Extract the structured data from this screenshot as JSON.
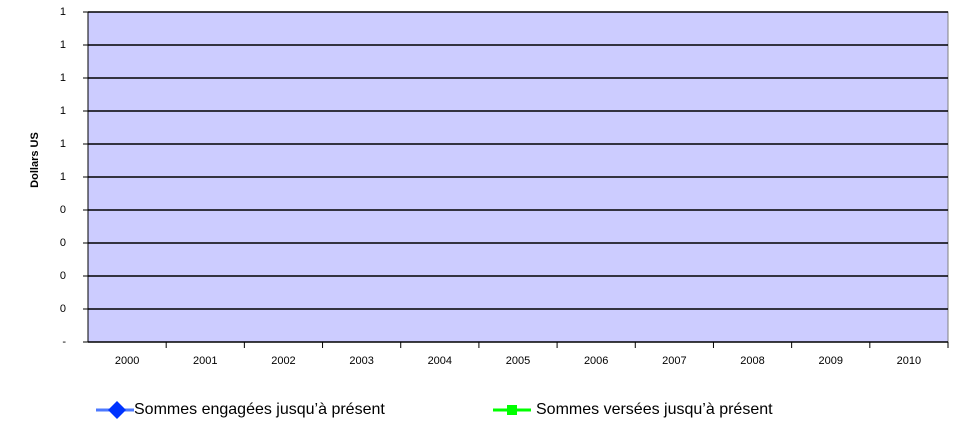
{
  "chart_data": {
    "type": "line",
    "y_label": "Dollars US",
    "categories": [
      "2000",
      "2001",
      "2002",
      "2003",
      "2004",
      "2005",
      "2006",
      "2007",
      "2008",
      "2009",
      "2010"
    ],
    "series": [
      {
        "name": "Sommes engagées jusqu’à présent",
        "color": "#0033ff",
        "values": [
          null,
          null,
          null,
          null,
          null,
          null,
          null,
          null,
          null,
          null,
          null
        ]
      },
      {
        "name": "Sommes versées jusqu’à présent",
        "color": "#00ff00",
        "values": [
          null,
          null,
          null,
          null,
          null,
          null,
          null,
          null,
          null,
          null,
          null
        ]
      }
    ],
    "ylim": [
      0,
      1
    ],
    "yticks": [
      {
        "value": 0,
        "label": "-"
      },
      {
        "value": 0.1,
        "label": "0"
      },
      {
        "value": 0.2,
        "label": "0"
      },
      {
        "value": 0.3,
        "label": "0"
      },
      {
        "value": 0.4,
        "label": "0"
      },
      {
        "value": 0.5,
        "label": "1"
      },
      {
        "value": 0.6,
        "label": "1"
      },
      {
        "value": 0.7,
        "label": "1"
      },
      {
        "value": 0.8,
        "label": "1"
      },
      {
        "value": 0.9,
        "label": "1"
      },
      1
    ],
    "grid": true,
    "plot_background": "#ccccff"
  }
}
